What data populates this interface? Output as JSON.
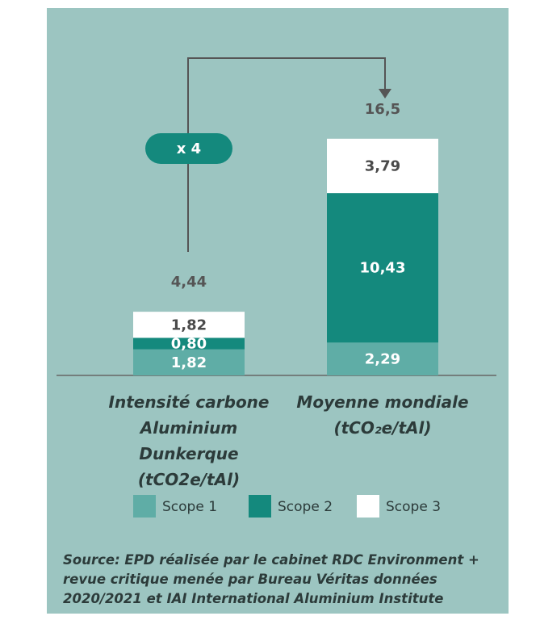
{
  "chart_data": {
    "type": "stacked_bar",
    "categories": [
      "Intensité carbone Aluminium Dunkerque (tCO2e/tAl)",
      "Moyenne mondiale (tCO₂e/tAl)"
    ],
    "series": [
      {
        "name": "Scope 1",
        "color": "#5fada6",
        "values": [
          1.82,
          2.29
        ],
        "value_labels": [
          "1,82",
          "2,29"
        ]
      },
      {
        "name": "Scope 2",
        "color": "#14897d",
        "values": [
          0.8,
          10.43
        ],
        "value_labels": [
          "0,80",
          "10,43"
        ]
      },
      {
        "name": "Scope 3",
        "color": "#ffffff",
        "values": [
          1.82,
          3.79
        ],
        "value_labels": [
          "1,82",
          "3,79"
        ]
      }
    ],
    "totals": [
      4.44,
      16.5
    ],
    "total_labels": [
      "4,44",
      "16,5"
    ],
    "annotation": "x 4",
    "ylim": [
      0,
      16.5
    ],
    "source": "Source: EPD réalisée par le cabinet RDC Environment + revue critique menée par Bureau Véritas données 2020/2021 et IAI International Aluminium Institute"
  }
}
